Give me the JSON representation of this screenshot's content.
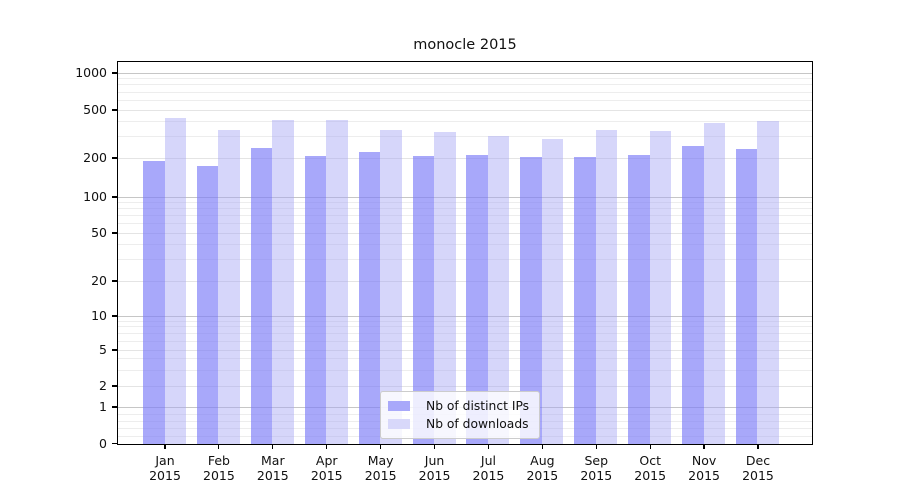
{
  "chart_data": {
    "type": "bar",
    "title": "monocle 2015",
    "categories": [
      "Jan",
      "Feb",
      "Mar",
      "Apr",
      "May",
      "Jun",
      "Jul",
      "Aug",
      "Sep",
      "Oct",
      "Nov",
      "Dec"
    ],
    "category_year": "2015",
    "series": [
      {
        "name": "Nb of distinct IPs",
        "color": "#a8a8fa",
        "fill": "rgba(125,125,248,0.67)",
        "values": [
          190,
          175,
          245,
          210,
          225,
          210,
          215,
          205,
          205,
          215,
          255,
          240
        ]
      },
      {
        "name": "Nb of downloads",
        "color": "#d8d8fa",
        "fill": "rgba(165,165,245,0.45)",
        "values": [
          430,
          345,
          420,
          415,
          345,
          330,
          310,
          290,
          345,
          340,
          395,
          410
        ]
      }
    ],
    "yscale": "symlog",
    "ylim": [
      0,
      1300
    ],
    "yticks": [
      0,
      1,
      2,
      5,
      10,
      20,
      50,
      100,
      200,
      500,
      1000
    ],
    "minor_ticks": [
      0.2,
      0.4,
      0.6,
      0.8,
      3,
      4,
      6,
      7,
      8,
      9,
      30,
      40,
      60,
      70,
      80,
      90,
      300,
      400,
      600,
      700,
      800,
      900
    ],
    "major_grid": [
      1,
      10,
      100,
      1000
    ],
    "grid": true,
    "legend_position": "lower center"
  }
}
